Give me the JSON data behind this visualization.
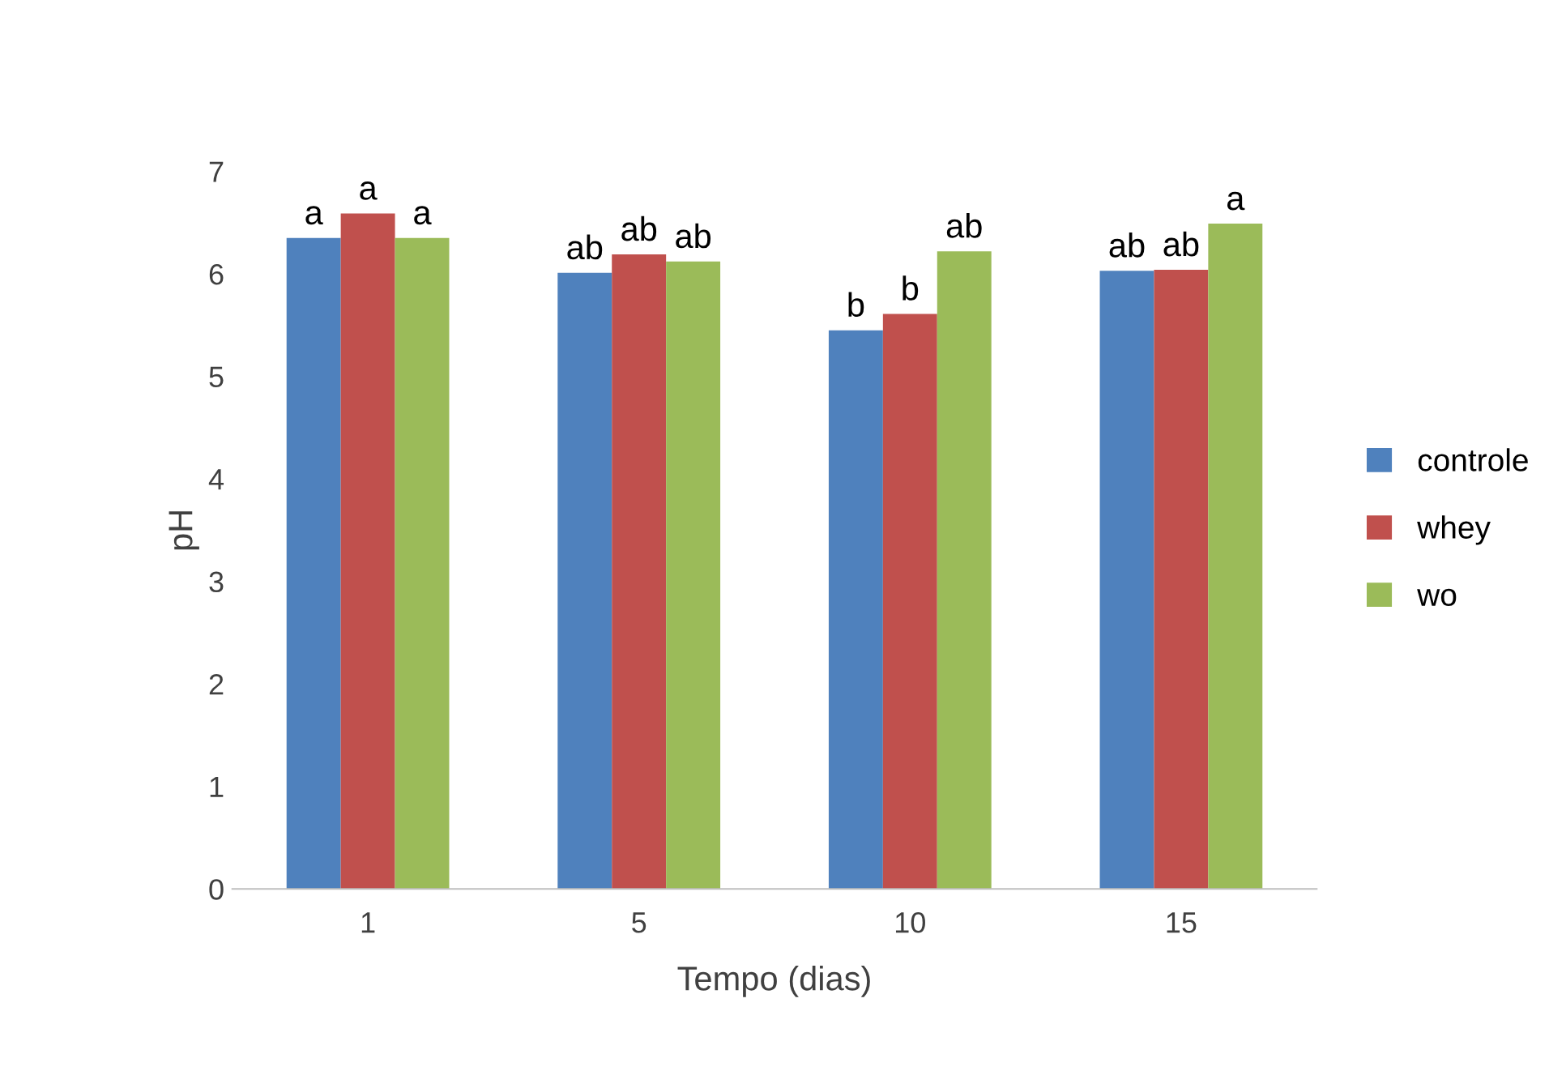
{
  "chart_data": {
    "type": "bar",
    "xlabel": "Tempo (dias)",
    "ylabel": "pH",
    "categories": [
      "1",
      "5",
      "10",
      "15"
    ],
    "series": [
      {
        "name": "controle",
        "color": "#4f81bd",
        "values": [
          6.35,
          6.01,
          5.45,
          6.03
        ],
        "value_labels": [
          "a",
          "ab",
          "b",
          "ab"
        ]
      },
      {
        "name": "whey",
        "color": "#c0504d",
        "values": [
          6.59,
          6.19,
          5.61,
          6.04
        ],
        "value_labels": [
          "a",
          "ab",
          "b",
          "ab"
        ]
      },
      {
        "name": "wo",
        "color": "#9bbb59",
        "values": [
          6.35,
          6.12,
          6.22,
          6.49
        ],
        "value_labels": [
          "a",
          "ab",
          "ab",
          "a"
        ]
      }
    ],
    "ylim": [
      0,
      7
    ],
    "yticks": [
      0,
      1,
      2,
      3,
      4,
      5,
      6,
      7
    ],
    "grid": false,
    "legend": "right"
  }
}
